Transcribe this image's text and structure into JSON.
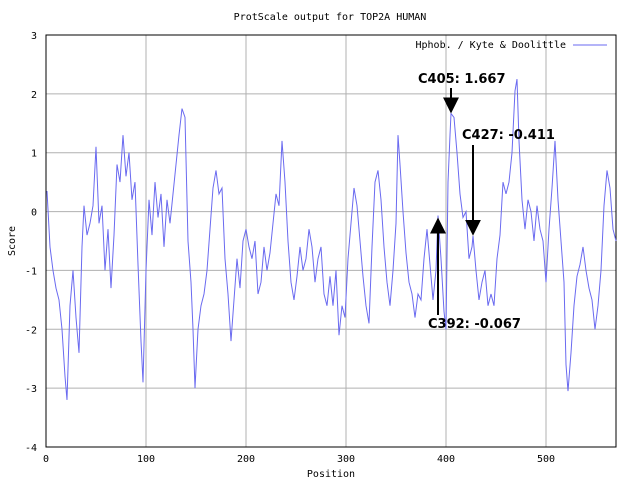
{
  "chart_data": {
    "type": "line",
    "title": "ProtScale output for TOP2A HUMAN",
    "xlabel": "Position",
    "ylabel": "Score",
    "xlim": [
      0,
      570
    ],
    "ylim": [
      -4,
      3
    ],
    "x_ticks": [
      0,
      100,
      200,
      300,
      400,
      500
    ],
    "y_ticks": [
      3,
      2,
      1,
      0,
      -1,
      -2,
      -3,
      -4
    ],
    "grid": true,
    "legend_position": "top-right",
    "series": [
      {
        "name": "Hphob. / Kyte & Doolittle",
        "color": "#6a6af0",
        "points": [
          [
            1,
            0.35
          ],
          [
            4,
            -0.6
          ],
          [
            7,
            -1.0
          ],
          [
            10,
            -1.3
          ],
          [
            13,
            -1.5
          ],
          [
            16,
            -2.0
          ],
          [
            19,
            -2.8
          ],
          [
            21,
            -3.2
          ],
          [
            24,
            -1.6
          ],
          [
            27,
            -1.0
          ],
          [
            30,
            -1.8
          ],
          [
            33,
            -2.4
          ],
          [
            36,
            -0.6
          ],
          [
            38,
            0.1
          ],
          [
            41,
            -0.4
          ],
          [
            44,
            -0.2
          ],
          [
            47,
            0.1
          ],
          [
            50,
            1.1
          ],
          [
            53,
            -0.2
          ],
          [
            56,
            0.1
          ],
          [
            59,
            -1.0
          ],
          [
            62,
            -0.3
          ],
          [
            65,
            -1.3
          ],
          [
            68,
            -0.4
          ],
          [
            71,
            0.8
          ],
          [
            74,
            0.5
          ],
          [
            77,
            1.3
          ],
          [
            80,
            0.6
          ],
          [
            83,
            1.0
          ],
          [
            86,
            0.2
          ],
          [
            89,
            0.5
          ],
          [
            92,
            -0.9
          ],
          [
            95,
            -2.2
          ],
          [
            97,
            -2.9
          ],
          [
            100,
            -1.0
          ],
          [
            103,
            0.2
          ],
          [
            106,
            -0.4
          ],
          [
            109,
            0.5
          ],
          [
            112,
            -0.1
          ],
          [
            115,
            0.3
          ],
          [
            118,
            -0.6
          ],
          [
            121,
            0.2
          ],
          [
            124,
            -0.2
          ],
          [
            127,
            0.3
          ],
          [
            130,
            0.8
          ],
          [
            133,
            1.3
          ],
          [
            136,
            1.75
          ],
          [
            139,
            1.6
          ],
          [
            142,
            -0.5
          ],
          [
            145,
            -1.2
          ],
          [
            147,
            -2.0
          ],
          [
            149,
            -3.0
          ],
          [
            152,
            -2.0
          ],
          [
            155,
            -1.6
          ],
          [
            158,
            -1.4
          ],
          [
            161,
            -1.0
          ],
          [
            164,
            -0.3
          ],
          [
            167,
            0.4
          ],
          [
            170,
            0.7
          ],
          [
            173,
            0.3
          ],
          [
            176,
            0.4
          ],
          [
            179,
            -0.8
          ],
          [
            182,
            -1.4
          ],
          [
            185,
            -2.2
          ],
          [
            188,
            -1.5
          ],
          [
            191,
            -0.8
          ],
          [
            194,
            -1.3
          ],
          [
            197,
            -0.5
          ],
          [
            200,
            -0.3
          ],
          [
            203,
            -0.6
          ],
          [
            206,
            -0.8
          ],
          [
            209,
            -0.5
          ],
          [
            212,
            -1.4
          ],
          [
            215,
            -1.2
          ],
          [
            218,
            -0.6
          ],
          [
            221,
            -1.0
          ],
          [
            224,
            -0.7
          ],
          [
            227,
            -0.2
          ],
          [
            230,
            0.3
          ],
          [
            233,
            0.1
          ],
          [
            236,
            1.2
          ],
          [
            239,
            0.5
          ],
          [
            242,
            -0.5
          ],
          [
            245,
            -1.2
          ],
          [
            248,
            -1.5
          ],
          [
            251,
            -1.1
          ],
          [
            254,
            -0.6
          ],
          [
            257,
            -1.0
          ],
          [
            260,
            -0.8
          ],
          [
            263,
            -0.3
          ],
          [
            266,
            -0.6
          ],
          [
            269,
            -1.2
          ],
          [
            272,
            -0.8
          ],
          [
            275,
            -0.6
          ],
          [
            278,
            -1.4
          ],
          [
            281,
            -1.6
          ],
          [
            284,
            -1.1
          ],
          [
            287,
            -1.6
          ],
          [
            290,
            -1.0
          ],
          [
            293,
            -2.1
          ],
          [
            296,
            -1.6
          ],
          [
            299,
            -1.8
          ],
          [
            302,
            -0.8
          ],
          [
            305,
            -0.2
          ],
          [
            308,
            0.4
          ],
          [
            311,
            0.1
          ],
          [
            314,
            -0.5
          ],
          [
            317,
            -1.1
          ],
          [
            320,
            -1.6
          ],
          [
            323,
            -1.9
          ],
          [
            326,
            -0.6
          ],
          [
            329,
            0.5
          ],
          [
            332,
            0.7
          ],
          [
            335,
            0.2
          ],
          [
            338,
            -0.6
          ],
          [
            341,
            -1.2
          ],
          [
            344,
            -1.6
          ],
          [
            347,
            -1.0
          ],
          [
            350,
            -0.2
          ],
          [
            352,
            1.3
          ],
          [
            354,
            0.8
          ],
          [
            357,
            0.0
          ],
          [
            360,
            -0.7
          ],
          [
            363,
            -1.2
          ],
          [
            366,
            -1.4
          ],
          [
            369,
            -1.8
          ],
          [
            372,
            -1.4
          ],
          [
            375,
            -1.5
          ],
          [
            378,
            -0.8
          ],
          [
            381,
            -0.3
          ],
          [
            384,
            -0.9
          ],
          [
            387,
            -1.5
          ],
          [
            390,
            -1.0
          ],
          [
            392,
            -0.067
          ],
          [
            395,
            -0.8
          ],
          [
            398,
            -1.7
          ],
          [
            400,
            -2.0
          ],
          [
            402,
            0.5
          ],
          [
            404,
            1.3
          ],
          [
            405,
            1.667
          ],
          [
            408,
            1.6
          ],
          [
            411,
            1.0
          ],
          [
            414,
            0.3
          ],
          [
            417,
            -0.1
          ],
          [
            420,
            0.0
          ],
          [
            423,
            -0.8
          ],
          [
            426,
            -0.6
          ],
          [
            427,
            -0.411
          ],
          [
            430,
            -1.0
          ],
          [
            433,
            -1.5
          ],
          [
            436,
            -1.2
          ],
          [
            439,
            -1.0
          ],
          [
            442,
            -1.6
          ],
          [
            445,
            -1.4
          ],
          [
            448,
            -1.6
          ],
          [
            451,
            -0.8
          ],
          [
            454,
            -0.4
          ],
          [
            457,
            0.5
          ],
          [
            460,
            0.3
          ],
          [
            463,
            0.5
          ],
          [
            466,
            1.0
          ],
          [
            469,
            2.05
          ],
          [
            471,
            2.25
          ],
          [
            473,
            1.2
          ],
          [
            476,
            0.2
          ],
          [
            479,
            -0.3
          ],
          [
            482,
            0.2
          ],
          [
            485,
            0.0
          ],
          [
            488,
            -0.5
          ],
          [
            491,
            0.1
          ],
          [
            494,
            -0.3
          ],
          [
            497,
            -0.5
          ],
          [
            500,
            -1.2
          ],
          [
            503,
            -0.3
          ],
          [
            506,
            0.4
          ],
          [
            509,
            1.2
          ],
          [
            512,
            0.2
          ],
          [
            515,
            -0.5
          ],
          [
            518,
            -1.2
          ],
          [
            520,
            -2.6
          ],
          [
            522,
            -3.05
          ],
          [
            525,
            -2.4
          ],
          [
            528,
            -1.6
          ],
          [
            531,
            -1.1
          ],
          [
            534,
            -0.9
          ],
          [
            537,
            -0.6
          ],
          [
            540,
            -1.0
          ],
          [
            543,
            -1.3
          ],
          [
            546,
            -1.5
          ],
          [
            549,
            -2.0
          ],
          [
            552,
            -1.6
          ],
          [
            555,
            -1.0
          ],
          [
            558,
            0.1
          ],
          [
            561,
            0.7
          ],
          [
            564,
            0.4
          ],
          [
            567,
            -0.3
          ],
          [
            570,
            -0.5
          ]
        ]
      }
    ],
    "annotations": [
      {
        "text": "C405: 1.667",
        "x": 405,
        "y": 1.667
      },
      {
        "text": "C427: -0.411",
        "x": 427,
        "y": -0.411
      },
      {
        "text": "C392: -0.067",
        "x": 392,
        "y": -0.067
      }
    ]
  }
}
